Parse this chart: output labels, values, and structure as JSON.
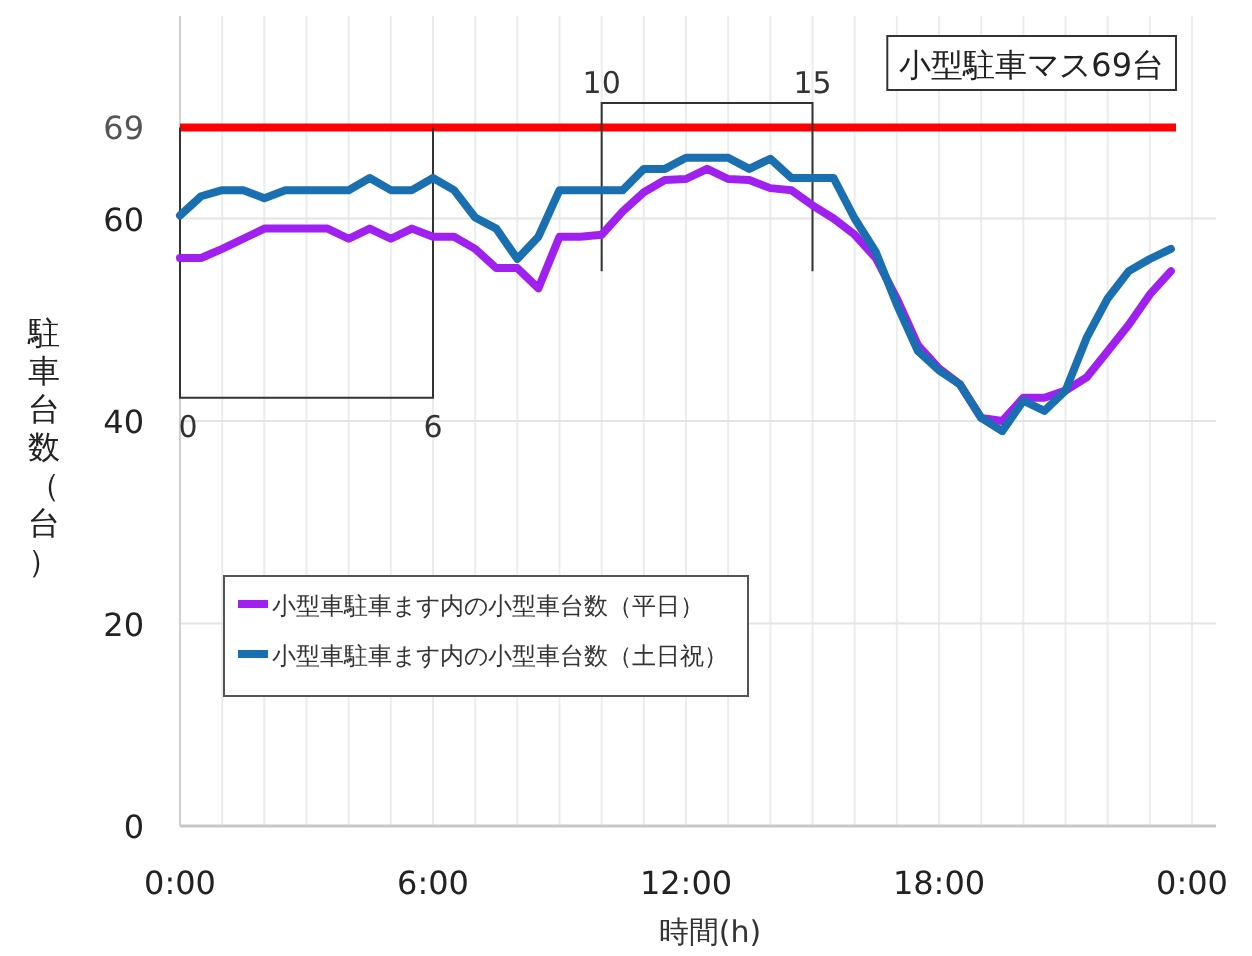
{
  "chart_data": {
    "type": "line",
    "xlabel": "時間(h)",
    "ylabel": "駐車台数（台）",
    "x": [
      0,
      0.5,
      1,
      1.5,
      2,
      2.5,
      3,
      3.5,
      4,
      4.5,
      5,
      5.5,
      6,
      6.5,
      7,
      7.5,
      8,
      8.5,
      9,
      9.5,
      10,
      10.5,
      11,
      11.5,
      12,
      12.5,
      13,
      13.5,
      14,
      14.5,
      15,
      15.5,
      16,
      16.5,
      17,
      17.5,
      18,
      18.5,
      19,
      19.5,
      20,
      20.5,
      21,
      21.5,
      22,
      22.5,
      23,
      23.5
    ],
    "series": [
      {
        "name": "小型車駐車ます内の小型車台数（平日）",
        "color": "#a020f0",
        "values": [
          56.1,
          56.1,
          57,
          58,
          59,
          59,
          59,
          59,
          58,
          59,
          58,
          59,
          58.2,
          58.2,
          57,
          55.1,
          55.1,
          53.1,
          58.2,
          58.2,
          58.4,
          60.7,
          62.6,
          63.8,
          63.9,
          64.9,
          63.9,
          63.8,
          63,
          62.8,
          61.3,
          60,
          58.4,
          56.1,
          52.1,
          47.5,
          45.2,
          43.6,
          40.3,
          40,
          42.3,
          42.3,
          43,
          44.3,
          46.9,
          49.5,
          52.5,
          54.8
        ]
      },
      {
        "name": "小型車駐車ます内の小型車台数（土日祝）",
        "color": "#1a6fb0",
        "values": [
          60.3,
          62.2,
          62.8,
          62.8,
          62,
          62.8,
          62.8,
          62.8,
          62.8,
          64,
          62.8,
          62.8,
          64,
          62.8,
          60.1,
          59,
          56,
          58.2,
          62.8,
          62.8,
          62.8,
          62.8,
          64.9,
          64.9,
          66,
          66,
          66,
          64.9,
          65.9,
          64,
          64,
          64,
          60,
          56.7,
          51.5,
          46.9,
          45,
          43.6,
          40.3,
          39,
          42,
          41,
          43,
          48.2,
          52.1,
          54.8,
          56,
          57
        ]
      }
    ],
    "xlim": [
      0,
      24
    ],
    "xticks": [
      {
        "value": 0,
        "label": "0:00"
      },
      {
        "value": 6,
        "label": "6:00"
      },
      {
        "value": 12,
        "label": "12:00"
      },
      {
        "value": 18,
        "label": "18:00"
      },
      {
        "value": 24,
        "label": "0:00"
      }
    ],
    "ylim": [
      0,
      80
    ],
    "yticks": [
      0,
      20,
      40,
      60,
      69
    ],
    "ref_lines": [
      {
        "axis": "y",
        "value": 69,
        "label": "小型駐車マス69台",
        "color": "#ff0000"
      }
    ],
    "annotations": [
      "0",
      "6",
      "10",
      "15"
    ],
    "grid": true,
    "legend": "left"
  }
}
